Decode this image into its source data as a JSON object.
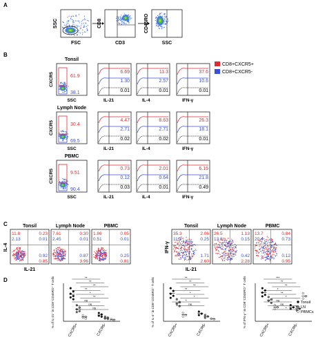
{
  "panel_labels": [
    "A",
    "B",
    "C",
    "D"
  ],
  "panelA": {
    "plot1": {
      "y": "SSC",
      "x": "FSC"
    },
    "plot2": {
      "y": "CD8",
      "x": "CD3"
    },
    "plot3": {
      "y": "CD45RO",
      "x": "SSC"
    }
  },
  "legend": {
    "pos": {
      "label": "CD8+CXCR5+",
      "color": "#e8262b"
    },
    "neg": {
      "label": "CD8+CXCR5-",
      "color": "#3b4fd6"
    }
  },
  "panelB": {
    "dot_xlabel": "SSC",
    "dot_ylabel": "CXCR5",
    "hist_labels": [
      "IL-21",
      "IL-4",
      "IFN-γ"
    ],
    "rows": [
      {
        "title": "Tonsil",
        "gate_pos": "61.9",
        "gate_neg": "38.1",
        "hists": [
          [
            "6.69",
            "1.30",
            "0.01"
          ],
          [
            "11.3",
            "2.57",
            "0.01"
          ],
          [
            "37.6",
            "10.6",
            "0.01"
          ]
        ]
      },
      {
        "title": "Lymph Node",
        "gate_pos": "30.4",
        "gate_neg": "69.5",
        "hists": [
          [
            "4.47",
            "2.71",
            "0.02"
          ],
          [
            "8.63",
            "2.71",
            "0.02"
          ],
          [
            "26.3",
            "18.1",
            "0.01"
          ]
        ]
      },
      {
        "title": "PBMC",
        "gate_pos": "9.51",
        "gate_neg": "90.4",
        "hists": [
          [
            "0.73",
            "0.12",
            "0.03"
          ],
          [
            "2.01",
            "0.64",
            "0.01"
          ],
          [
            "6.15",
            "21.8",
            "0.49"
          ]
        ]
      }
    ]
  },
  "panelC": {
    "left_ylabel": "IL-4",
    "left_xlabel": "IL-21",
    "right_ylabel": "IFN-γ",
    "right_xlabel": "IL-21",
    "plots": [
      {
        "title": "Tonsil",
        "ul_red": "11.8",
        "ur_red": "0.23",
        "ul_blue": "2.13",
        "ur_blue": "0.01",
        "ll_red": "",
        "lr_red": "0.85",
        "ll_blue": "",
        "lr_blue": "0.92"
      },
      {
        "title": "Lymph Node",
        "ul_red": "7.61",
        "ur_red": "0.30",
        "ul_blue": "2.45",
        "ur_blue": "0.01",
        "ll_red": "",
        "lr_red": "3.96",
        "ll_blue": "",
        "lr_blue": "0.87"
      },
      {
        "title": "PBMC",
        "ul_red": "1.86",
        "ur_red": "0.05",
        "ul_blue": "0.51",
        "ur_blue": "0.01",
        "ll_red": "",
        "lr_red": "0.81",
        "ll_blue": "",
        "lr_blue": "0.25"
      },
      {
        "title": "Tonsil",
        "ul_red": "35.3",
        "ur_red": "2.06",
        "ul_blue": "11.3",
        "ur_blue": "0.25",
        "ll_red": "",
        "lr_red": "2.60",
        "ll_blue": "",
        "lr_blue": "1.71"
      },
      {
        "title": "Lymph Node",
        "ul_red": "26.5",
        "ur_red": "1.13",
        "ul_blue": "13.3",
        "ur_blue": "0.15",
        "ll_red": "",
        "lr_red": "2.28",
        "ll_blue": "",
        "lr_blue": "0.42"
      },
      {
        "title": "PBMC",
        "ul_red": "13.7",
        "ur_red": "0.84",
        "ul_blue": "20.4",
        "ur_blue": "0.73",
        "ll_red": "",
        "lr_red": "0.95",
        "ll_blue": "",
        "lr_blue": "0.12"
      }
    ]
  },
  "chart_data": [
    {
      "type": "scatter",
      "ylabel": "% of IL-21⁺ in CD8⁺CD45RO⁺ T cells",
      "categories": [
        "CXCR5+",
        "CXCR5-"
      ],
      "series": [
        {
          "name": "Tonsil",
          "values": [
            [
              7.2,
              6.5,
              6.0,
              5.5,
              5.2,
              4.8
            ],
            [
              1.8,
              1.5,
              1.2,
              1.0
            ]
          ]
        },
        {
          "name": "LN",
          "values": [
            [
              3.5,
              3.0,
              2.6,
              2.2,
              2.0
            ],
            [
              1.0,
              0.8,
              0.6,
              0.5
            ]
          ]
        },
        {
          "name": "PBMCs",
          "values": [
            [
              1.3,
              1.0,
              0.8,
              0.6
            ],
            [
              0.5,
              0.3,
              0.2
            ]
          ]
        }
      ],
      "annotations": [
        "**",
        "**",
        "**",
        "**",
        "*",
        "**",
        "ns",
        "ns",
        "ns"
      ]
    },
    {
      "type": "scatter",
      "ylabel": "% of IL-4⁺ in CD8⁺CD45RO⁺ T cells",
      "categories": [
        "CXCR5+",
        "CXCR5-"
      ],
      "series": [
        {
          "name": "Tonsil",
          "values": [
            [
              4.8,
              4.4,
              4.0,
              3.7,
              3.4
            ],
            [
              1.4,
              1.1,
              0.9
            ]
          ]
        },
        {
          "name": "LN",
          "values": [
            [
              3.2,
              2.8,
              2.5,
              2.2
            ],
            [
              0.9,
              0.7,
              0.5
            ]
          ]
        },
        {
          "name": "PBMCs",
          "values": [
            [
              1.2,
              0.9,
              0.7
            ],
            [
              0.4,
              0.3
            ]
          ]
        }
      ],
      "annotations": [
        "**",
        "**",
        "**",
        "**",
        "*",
        "*",
        "*",
        "ns"
      ]
    },
    {
      "type": "scatter",
      "ylabel": "% of IFN-γ⁺ in CD8⁺CD45RO⁺ T cells",
      "categories": [
        "CXCR5+",
        "CXCR5-"
      ],
      "series": [
        {
          "name": "Tonsil",
          "values": [
            [
              45,
              42,
              39,
              36,
              34
            ],
            [
              22,
              19,
              17
            ]
          ]
        },
        {
          "name": "LN",
          "values": [
            [
              33,
              30,
              28,
              25
            ],
            [
              20,
              17,
              15
            ]
          ]
        },
        {
          "name": "PBMCs",
          "values": [
            [
              22,
              19,
              17
            ],
            [
              38,
              34,
              31
            ]
          ]
        }
      ],
      "annotations": [
        "***",
        "**",
        "**",
        "*",
        "**",
        "*",
        "ns",
        "ns",
        "*"
      ]
    }
  ],
  "panelD_legend": [
    "Tonsil",
    "LN",
    "PBMCs"
  ]
}
